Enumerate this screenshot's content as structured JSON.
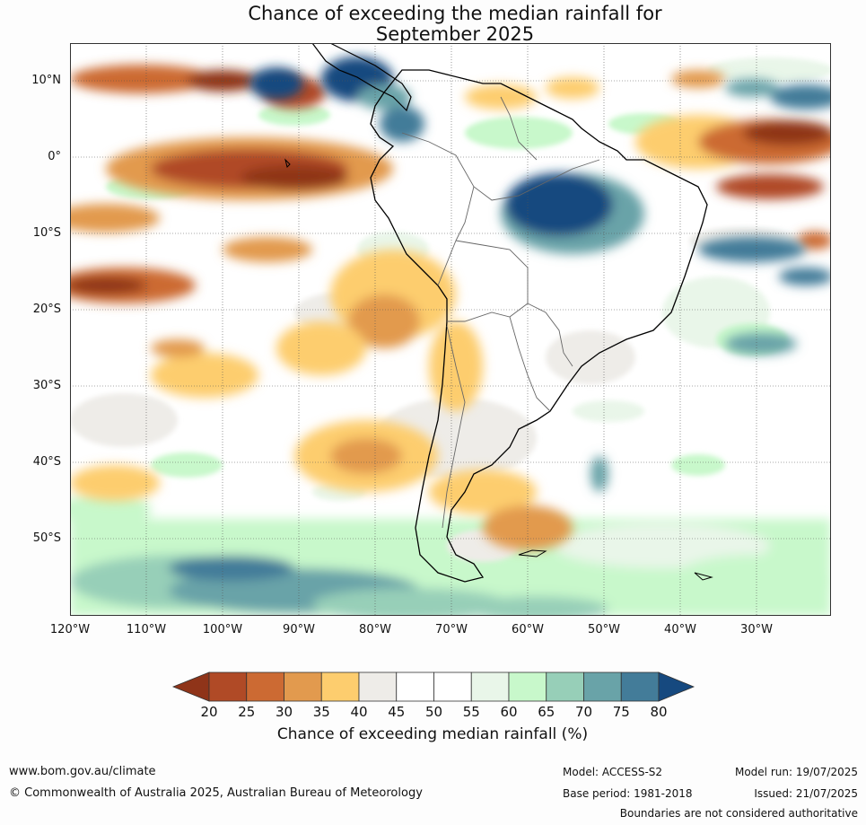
{
  "title": {
    "line1": "Chance of exceeding the median rainfall for",
    "line2": "September 2025"
  },
  "map": {
    "latitude_labels": [
      "10°N",
      "0°",
      "10°S",
      "20°S",
      "30°S",
      "40°S",
      "50°S"
    ],
    "longitude_labels": [
      "120°W",
      "110°W",
      "100°W",
      "90°W",
      "80°W",
      "70°W",
      "60°W",
      "50°W",
      "40°W",
      "30°W"
    ]
  },
  "colorbar": {
    "ticks": [
      "20",
      "25",
      "30",
      "35",
      "40",
      "45",
      "50",
      "55",
      "60",
      "65",
      "70",
      "75",
      "80"
    ],
    "colors": [
      "#8f3419",
      "#b04a26",
      "#cc6a33",
      "#e29a4e",
      "#fdcd6e",
      "#eeece8",
      "#ffffff",
      "#ffffff",
      "#e9f6e9",
      "#c8f8cb",
      "#97cfb8",
      "#69a3a8",
      "#437c99",
      "#16497f"
    ],
    "title": "Chance of exceeding median rainfall (%)"
  },
  "footer": {
    "website": "www.bom.gov.au/climate",
    "copyright": "© Commonwealth of Australia 2025, Australian Bureau of Meteorology",
    "model": "Model: ACCESS-S2",
    "base_period": "Base period: 1981-2018",
    "model_run": "Model run: 19/07/2025",
    "issued": "Issued: 21/07/2025",
    "disclaimer": "Boundaries are not considered authoritative"
  }
}
